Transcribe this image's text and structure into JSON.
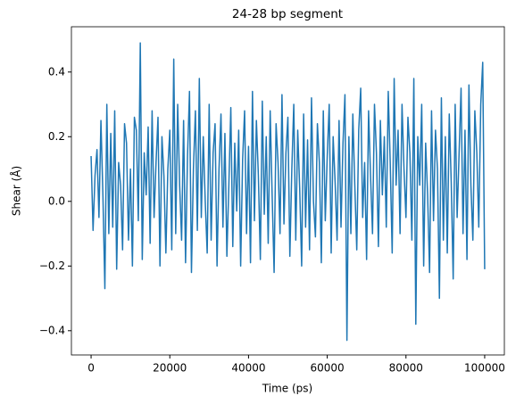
{
  "chart_data": {
    "type": "line",
    "title": "24-28 bp segment",
    "x_label": "Time (ps)",
    "y_label": "Shear (Å)",
    "x": [
      0,
      500,
      1000,
      1500,
      2000,
      2500,
      3000,
      3500,
      4000,
      4500,
      5000,
      5500,
      6000,
      6500,
      7000,
      7500,
      8000,
      8500,
      9000,
      9500,
      10000,
      10500,
      11000,
      11500,
      12000,
      12500,
      13000,
      13500,
      14000,
      14500,
      15000,
      15500,
      16000,
      16500,
      17000,
      17500,
      18000,
      18500,
      19000,
      19500,
      20000,
      20500,
      21000,
      21500,
      22000,
      22500,
      23000,
      23500,
      24000,
      24500,
      25000,
      25500,
      26000,
      26500,
      27000,
      27500,
      28000,
      28500,
      29000,
      29500,
      30000,
      30500,
      31000,
      31500,
      32000,
      32500,
      33000,
      33500,
      34000,
      34500,
      35000,
      35500,
      36000,
      36500,
      37000,
      37500,
      38000,
      38500,
      39000,
      39500,
      40000,
      40500,
      41000,
      41500,
      42000,
      42500,
      43000,
      43500,
      44000,
      44500,
      45000,
      45500,
      46000,
      46500,
      47000,
      47500,
      48000,
      48500,
      49000,
      49500,
      50000,
      50500,
      51000,
      51500,
      52000,
      52500,
      53000,
      53500,
      54000,
      54500,
      55000,
      55500,
      56000,
      56500,
      57000,
      57500,
      58000,
      58500,
      59000,
      59500,
      60000,
      60500,
      61000,
      61500,
      62000,
      62500,
      63000,
      63500,
      64000,
      64500,
      65000,
      65500,
      66000,
      66500,
      67000,
      67500,
      68000,
      68500,
      69000,
      69500,
      70000,
      70500,
      71000,
      71500,
      72000,
      72500,
      73000,
      73500,
      74000,
      74500,
      75000,
      75500,
      76000,
      76500,
      77000,
      77500,
      78000,
      78500,
      79000,
      79500,
      80000,
      80500,
      81000,
      81500,
      82000,
      82500,
      83000,
      83500,
      84000,
      84500,
      85000,
      85500,
      86000,
      86500,
      87000,
      87500,
      88000,
      88500,
      89000,
      89500,
      90000,
      90500,
      91000,
      91500,
      92000,
      92500,
      93000,
      93500,
      94000,
      94500,
      95000,
      95500,
      96000,
      96500,
      97000,
      97500,
      98000,
      98500,
      99000,
      99500,
      100000
    ],
    "series": [
      {
        "color": "#1f77b4",
        "values": [
          0.14,
          -0.09,
          0.08,
          0.16,
          -0.05,
          0.25,
          0.02,
          -0.27,
          0.3,
          -0.1,
          0.21,
          -0.08,
          0.28,
          -0.21,
          0.12,
          0.05,
          -0.15,
          0.24,
          0.18,
          -0.12,
          0.1,
          -0.2,
          0.26,
          0.22,
          -0.06,
          0.49,
          -0.18,
          0.15,
          0.02,
          0.23,
          -0.13,
          0.28,
          -0.05,
          0.12,
          0.26,
          -0.2,
          0.2,
          0.08,
          -0.16,
          0.1,
          0.22,
          -0.15,
          0.44,
          -0.1,
          0.3,
          0.05,
          -0.12,
          0.25,
          -0.19,
          0.14,
          0.34,
          -0.22,
          0.1,
          0.28,
          -0.09,
          0.38,
          -0.05,
          0.2,
          0.0,
          -0.16,
          0.3,
          -0.12,
          0.15,
          0.24,
          -0.2,
          0.1,
          0.27,
          -0.08,
          0.21,
          -0.17,
          0.05,
          0.29,
          -0.14,
          0.18,
          -0.03,
          0.22,
          -0.2,
          0.13,
          0.28,
          -0.1,
          0.17,
          -0.19,
          0.34,
          -0.06,
          0.25,
          0.08,
          -0.18,
          0.31,
          -0.04,
          0.2,
          -0.13,
          0.28,
          0.02,
          -0.22,
          0.24,
          0.12,
          -0.1,
          0.33,
          -0.07,
          0.15,
          0.26,
          -0.17,
          0.1,
          0.3,
          -0.12,
          0.22,
          0.04,
          -0.2,
          0.27,
          -0.08,
          0.19,
          -0.15,
          0.32,
          0.0,
          -0.11,
          0.24,
          0.12,
          -0.19,
          0.28,
          -0.06,
          0.14,
          0.3,
          -0.16,
          0.2,
          0.06,
          -0.12,
          0.25,
          -0.08,
          0.18,
          0.33,
          -0.43,
          0.2,
          -0.1,
          0.27,
          0.05,
          -0.15,
          0.22,
          0.35,
          -0.05,
          0.12,
          -0.18,
          0.28,
          0.08,
          -0.1,
          0.3,
          0.15,
          -0.14,
          0.25,
          0.02,
          0.2,
          -0.08,
          0.34,
          0.12,
          -0.16,
          0.38,
          0.05,
          0.22,
          -0.1,
          0.3,
          0.1,
          -0.05,
          0.26,
          0.15,
          -0.12,
          0.38,
          -0.38,
          0.2,
          0.05,
          0.3,
          -0.2,
          0.18,
          0.02,
          -0.22,
          0.28,
          -0.06,
          0.22,
          0.1,
          -0.3,
          0.32,
          -0.12,
          0.2,
          -0.16,
          0.27,
          0.06,
          -0.24,
          0.3,
          -0.05,
          0.15,
          0.35,
          -0.1,
          0.22,
          -0.18,
          0.36,
          0.05,
          -0.12,
          0.28,
          0.15,
          -0.08,
          0.3,
          0.43,
          -0.21
        ]
      }
    ],
    "xlim": [
      -5000,
      105000
    ],
    "ylim": [
      -0.475,
      0.54
    ],
    "xticks": [
      0,
      20000,
      40000,
      60000,
      80000,
      100000
    ],
    "yticks": [
      {
        "value": -0.4,
        "label": "−0.4"
      },
      {
        "value": -0.2,
        "label": "−0.2"
      },
      {
        "value": 0.0,
        "label": "0.0"
      },
      0.2,
      0.4
    ]
  }
}
